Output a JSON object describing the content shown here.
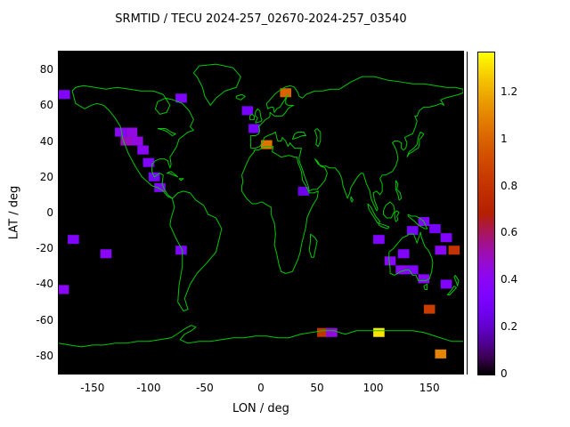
{
  "chart_data": {
    "type": "heatmap",
    "title": "SRMTID / TECU 2024-257_02670-2024-257_03540",
    "xlabel": "LON / deg",
    "ylabel": "LAT / deg",
    "xlim": [
      -180,
      180
    ],
    "ylim": [
      -90,
      90
    ],
    "x_ticks": [
      -150,
      -100,
      -50,
      0,
      50,
      100,
      150
    ],
    "y_ticks": [
      -80,
      -60,
      -40,
      -20,
      0,
      20,
      40,
      60,
      80
    ],
    "grid": false,
    "plot_background": "#000000",
    "coastline_color": "#00c800",
    "colorbar": {
      "min": 0,
      "max": 1.37,
      "ticks": [
        0,
        0.2,
        0.4,
        0.6,
        0.8,
        1,
        1.2
      ],
      "tick_labels": [
        "0",
        "0.2",
        "0.4",
        "0.6",
        "0.8",
        "1",
        "1.2"
      ],
      "colormap": "gnuplot black-purple-red-orange-yellow",
      "position": "right"
    },
    "cell_size": {
      "dlon": 10,
      "dlat": 5
    },
    "cells": [
      {
        "lon": -175,
        "lat": 66,
        "value": 0.35
      },
      {
        "lon": -71,
        "lat": 64,
        "value": 0.35
      },
      {
        "lon": 22,
        "lat": 67,
        "value": 1.0
      },
      {
        "lon": -12,
        "lat": 57,
        "value": 0.3
      },
      {
        "lon": -6,
        "lat": 47,
        "value": 0.3
      },
      {
        "lon": -125,
        "lat": 45,
        "value": 0.4
      },
      {
        "lon": -115,
        "lat": 45,
        "value": 0.45
      },
      {
        "lon": -120,
        "lat": 40,
        "value": 0.5
      },
      {
        "lon": -110,
        "lat": 40,
        "value": 0.45
      },
      {
        "lon": -105,
        "lat": 35,
        "value": 0.4
      },
      {
        "lon": -100,
        "lat": 28,
        "value": 0.35
      },
      {
        "lon": -95,
        "lat": 20,
        "value": 0.3
      },
      {
        "lon": -90,
        "lat": 14,
        "value": 0.35
      },
      {
        "lon": 5,
        "lat": 38,
        "value": 1.05
      },
      {
        "lon": 38,
        "lat": 12,
        "value": 0.25
      },
      {
        "lon": -167,
        "lat": -15,
        "value": 0.35
      },
      {
        "lon": -138,
        "lat": -23,
        "value": 0.4
      },
      {
        "lon": -71,
        "lat": -21,
        "value": 0.35
      },
      {
        "lon": -176,
        "lat": -43,
        "value": 0.4
      },
      {
        "lon": 105,
        "lat": -15,
        "value": 0.35
      },
      {
        "lon": 115,
        "lat": -27,
        "value": 0.4
      },
      {
        "lon": 127,
        "lat": -23,
        "value": 0.35
      },
      {
        "lon": 135,
        "lat": -10,
        "value": 0.3
      },
      {
        "lon": 145,
        "lat": -5,
        "value": 0.35
      },
      {
        "lon": 155,
        "lat": -9,
        "value": 0.3
      },
      {
        "lon": 165,
        "lat": -14,
        "value": 0.35
      },
      {
        "lon": 160,
        "lat": -21,
        "value": 0.4
      },
      {
        "lon": 172,
        "lat": -21,
        "value": 0.8
      },
      {
        "lon": 125,
        "lat": -32,
        "value": 0.4
      },
      {
        "lon": 135,
        "lat": -32,
        "value": 0.35
      },
      {
        "lon": 145,
        "lat": -37,
        "value": 0.4
      },
      {
        "lon": 165,
        "lat": -40,
        "value": 0.35
      },
      {
        "lon": 150,
        "lat": -54,
        "value": 0.85
      },
      {
        "lon": 55,
        "lat": -67,
        "value": 0.8
      },
      {
        "lon": 63,
        "lat": -67,
        "value": 0.45
      },
      {
        "lon": 105,
        "lat": -67,
        "value": 1.32
      },
      {
        "lon": 160,
        "lat": -79,
        "value": 1.1
      }
    ]
  }
}
